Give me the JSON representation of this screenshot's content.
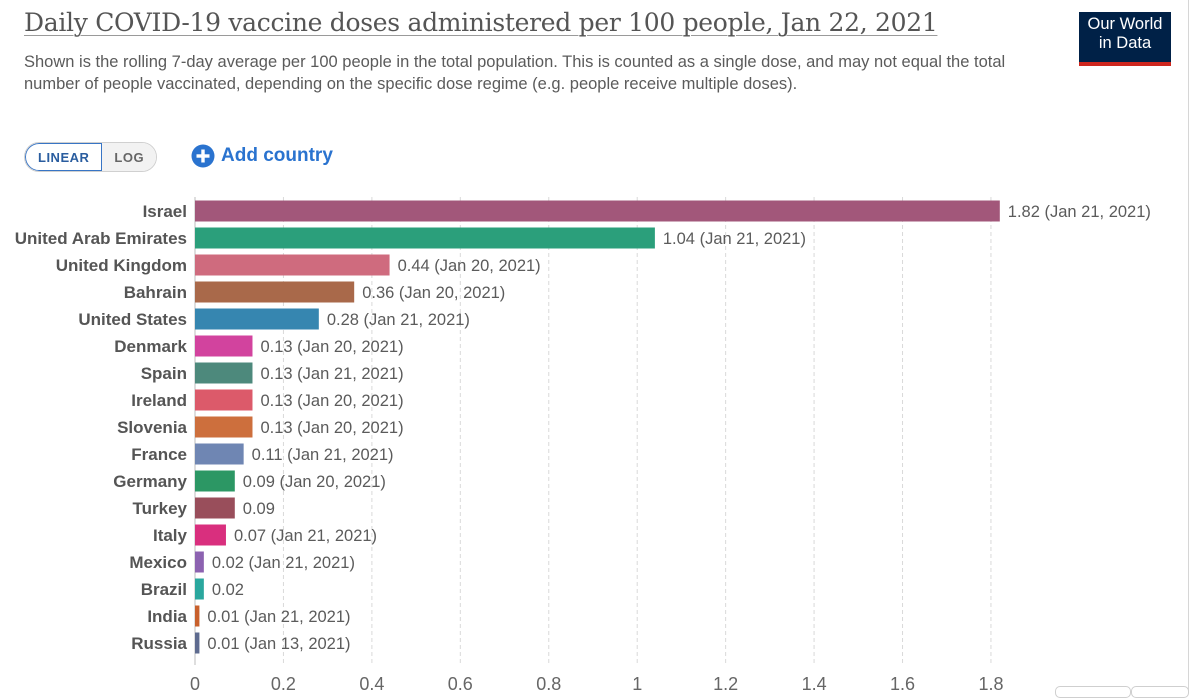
{
  "header": {
    "title": "Daily COVID-19 vaccine doses administered per 100 people, Jan 22, 2021",
    "subtitle": "Shown is the rolling 7-day average per 100 people in the total population. This is counted as a single dose, and may not equal the total number of people vaccinated, depending on the specific dose regime (e.g. people receive multiple doses).",
    "logo_line1": "Our World",
    "logo_line2": "in Data"
  },
  "controls": {
    "linear_label": "LINEAR",
    "log_label": "LOG",
    "add_country_label": "Add country"
  },
  "colors": {
    "accent": "#3875c5",
    "logo_bg": "#002147",
    "logo_bar": "#ce261e"
  },
  "chart_data": {
    "type": "bar",
    "orientation": "horizontal",
    "title": "Daily COVID-19 vaccine doses administered per 100 people, Jan 22, 2021",
    "xlim": [
      0,
      1.8
    ],
    "x_ticks": [
      "0",
      "0.2",
      "0.4",
      "0.6",
      "0.8",
      "1",
      "1.2",
      "1.4",
      "1.6",
      "1.8"
    ],
    "tick_values": [
      0,
      0.2,
      0.4,
      0.6,
      0.8,
      1,
      1.2,
      1.4,
      1.6,
      1.8
    ],
    "grid": true,
    "categories": [
      "Israel",
      "United Arab Emirates",
      "United Kingdom",
      "Bahrain",
      "United States",
      "Denmark",
      "Spain",
      "Ireland",
      "Slovenia",
      "France",
      "Germany",
      "Turkey",
      "Italy",
      "Mexico",
      "Brazil",
      "India",
      "Russia"
    ],
    "values": [
      1.82,
      1.04,
      0.44,
      0.36,
      0.28,
      0.13,
      0.13,
      0.13,
      0.13,
      0.11,
      0.09,
      0.09,
      0.07,
      0.02,
      0.02,
      0.01,
      0.01
    ],
    "value_labels": [
      "1.82 (Jan 21, 2021)",
      "1.04 (Jan 21, 2021)",
      "0.44 (Jan 20, 2021)",
      "0.36 (Jan 20, 2021)",
      "0.28 (Jan 21, 2021)",
      "0.13 (Jan 20, 2021)",
      "0.13 (Jan 21, 2021)",
      "0.13 (Jan 20, 2021)",
      "0.13 (Jan 20, 2021)",
      "0.11 (Jan 21, 2021)",
      "0.09 (Jan 20, 2021)",
      "0.09",
      "0.07 (Jan 21, 2021)",
      "0.02 (Jan 21, 2021)",
      "0.02",
      "0.01 (Jan 21, 2021)",
      "0.01 (Jan 13, 2021)"
    ],
    "bar_colors": [
      "#a2577a",
      "#2b9f7b",
      "#cf6b7e",
      "#a9694a",
      "#3686b0",
      "#d2439e",
      "#4d897c",
      "#dc5a6a",
      "#cd6f3d",
      "#6f86b3",
      "#2c9764",
      "#994e5b",
      "#d92f7e",
      "#8c62b0",
      "#2aa79e",
      "#c8602c",
      "#5e6b8f"
    ]
  }
}
